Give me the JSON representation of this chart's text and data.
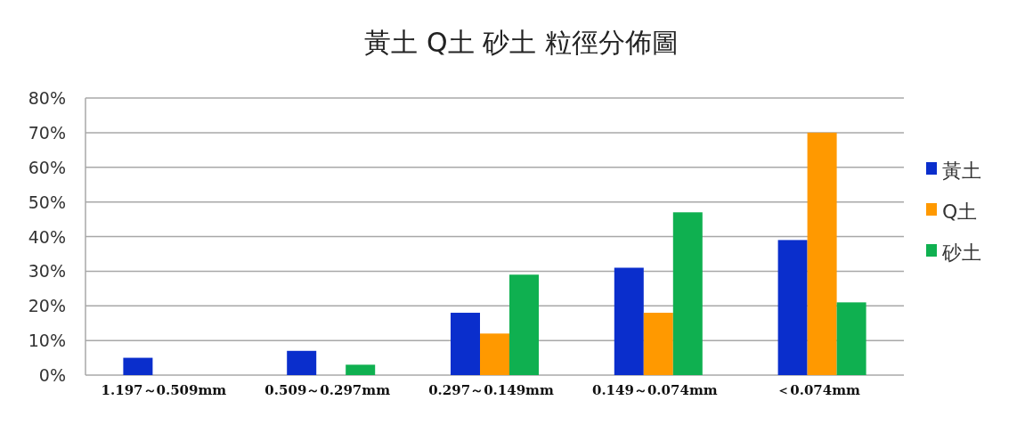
{
  "chart_data": {
    "type": "bar",
    "title": "黃土 Q土 砂土 粒徑分佈圖",
    "categories": [
      "1.197～0.509mm",
      "0.509～0.297mm",
      "0.297～0.149mm",
      "0.149～0.074mm",
      "＜0.074mm"
    ],
    "series": [
      {
        "name": "黃土",
        "color": "#0a2ecc",
        "values": [
          5,
          7,
          18,
          31,
          39
        ]
      },
      {
        "name": "Q土",
        "color": "#ff9900",
        "values": [
          0,
          0,
          12,
          18,
          70
        ]
      },
      {
        "name": "砂土",
        "color": "#0fb050",
        "values": [
          0,
          3,
          29,
          47,
          21
        ]
      }
    ],
    "ylim": [
      0,
      80
    ],
    "yticks": [
      {
        "value": 0,
        "label": "0%"
      },
      {
        "value": 10,
        "label": "10%"
      },
      {
        "value": 20,
        "label": "20%"
      },
      {
        "value": 30,
        "label": "30%"
      },
      {
        "value": 40,
        "label": "40%"
      },
      {
        "value": 50,
        "label": "50%"
      },
      {
        "value": 60,
        "label": "60%"
      },
      {
        "value": 70,
        "label": "70%"
      },
      {
        "value": 80,
        "label": "80%"
      }
    ],
    "grid": "y",
    "legend": "right"
  }
}
